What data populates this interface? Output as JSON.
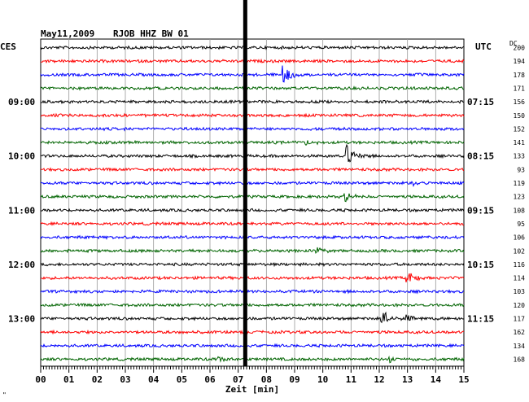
{
  "header": {
    "date": "May11,2009",
    "station": "RJOB HHZ BW 01",
    "left_zone": "CES",
    "right_zone": "UTC",
    "dc_label": "DC"
  },
  "chart_data": {
    "type": "line",
    "title": "May11,2009  RJOB HHZ BW 01",
    "xlabel": "Zeit [min]",
    "xlim": [
      0,
      15
    ],
    "x_ticks": [
      "00",
      "01",
      "02",
      "03",
      "04",
      "05",
      "06",
      "07",
      "08",
      "09",
      "10",
      "11",
      "12",
      "13",
      "14",
      "15"
    ],
    "trace_colors": [
      "#000000",
      "#ff0000",
      "#0000ff",
      "#006400"
    ],
    "left_time_labels": [
      {
        "row": 4,
        "label": "09:00"
      },
      {
        "row": 8,
        "label": "10:00"
      },
      {
        "row": 12,
        "label": "11:00"
      },
      {
        "row": 16,
        "label": "12:00"
      },
      {
        "row": 20,
        "label": "13:00"
      }
    ],
    "right_time_labels": [
      {
        "row": 4,
        "label": "07:15"
      },
      {
        "row": 8,
        "label": "08:15"
      },
      {
        "row": 12,
        "label": "09:15"
      },
      {
        "row": 16,
        "label": "10:15"
      },
      {
        "row": 20,
        "label": "11:15"
      }
    ],
    "dc_values": [
      "200",
      "194",
      "178",
      "171",
      "156",
      "150",
      "152",
      "141",
      "133",
      "93",
      "119",
      "123",
      "108",
      "95",
      "106",
      "102",
      "116",
      "114",
      "103",
      "120",
      "117",
      "162",
      "134",
      "168"
    ],
    "marker_minute": 7.25,
    "events": [
      {
        "row": 2,
        "minute": 8.6,
        "amp": 12
      },
      {
        "row": 7,
        "minute": 9.4,
        "amp": 5
      },
      {
        "row": 8,
        "minute": 10.85,
        "amp": 14
      },
      {
        "row": 10,
        "minute": 13.2,
        "amp": 4
      },
      {
        "row": 11,
        "minute": 10.8,
        "amp": 7
      },
      {
        "row": 15,
        "minute": 9.8,
        "amp": 4
      },
      {
        "row": 17,
        "minute": 13.0,
        "amp": 9
      },
      {
        "row": 20,
        "minute": 12.1,
        "amp": 12
      },
      {
        "row": 20,
        "minute": 13.0,
        "amp": 7
      },
      {
        "row": 23,
        "minute": 6.3,
        "amp": 4
      },
      {
        "row": 23,
        "minute": 12.4,
        "amp": 5
      }
    ]
  },
  "footer": {
    "corner_mark": "\""
  }
}
